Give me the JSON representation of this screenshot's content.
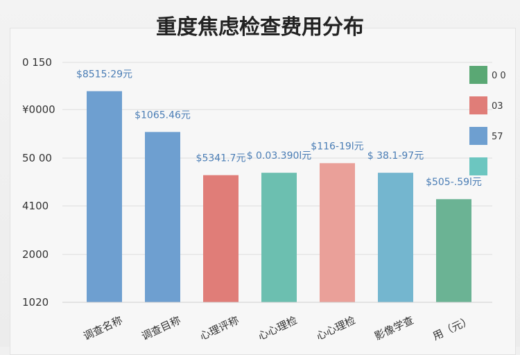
{
  "chart_data": {
    "type": "bar",
    "title": "重度焦虑检查费用分布",
    "xlabel": "",
    "ylabel": "",
    "y_tick_labels": [
      "0 150",
      "¥0000",
      "50 00",
      "4100",
      "2000",
      "1020"
    ],
    "categories": [
      "调查名称",
      "调查目称",
      "心理评称",
      "心心理检",
      "心心理检",
      "影像学查",
      "用（元）"
    ],
    "values": [
      8.8,
      7.1,
      5.3,
      5.4,
      5.8,
      5.4,
      4.3
    ],
    "data_labels": [
      "$8515:29元",
      "$1065.46元",
      "$5341.7元",
      "$ 0.03.390l元",
      "$116-19l元",
      "$ 38.1-97元",
      "$505-.59l元"
    ],
    "bar_colors": [
      "#6e9fd0",
      "#6e9fd0",
      "#e07d78",
      "#6cbfb0",
      "#eaa099",
      "#74b6cf",
      "#6bb394"
    ],
    "ylim": [
      0,
      10
    ],
    "grid": true,
    "legend": {
      "placement": "top-right",
      "entries": [
        {
          "label": "0 0",
          "color": "#5aa874"
        },
        {
          "label": "03",
          "color": "#e07d78"
        },
        {
          "label": "57",
          "color": "#6e9fd0"
        },
        {
          "label": "",
          "color": "#6cc6c0"
        }
      ]
    }
  }
}
